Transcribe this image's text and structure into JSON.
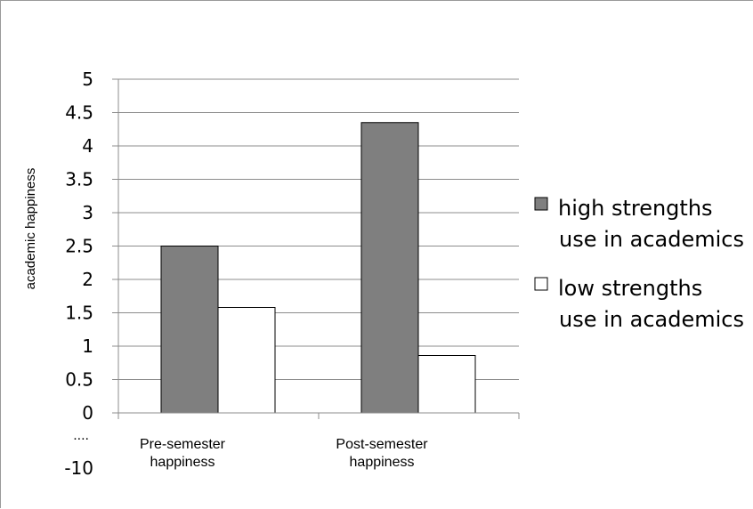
{
  "chart_data": {
    "type": "bar",
    "ylabel": "academic happiness",
    "xlabel": "",
    "ylim": [
      0,
      5
    ],
    "yticks": [
      "0",
      "0.5",
      "1",
      "1.5",
      "2",
      "2.5",
      "3",
      "3.5",
      "4",
      "4.5",
      "5"
    ],
    "ybreak_labels": [
      "....",
      "-10"
    ],
    "categories": [
      [
        "Pre-semester",
        "happiness"
      ],
      [
        "Post-semester",
        "happiness"
      ]
    ],
    "series": [
      {
        "name": [
          "high strengths",
          "use in academics"
        ],
        "color": "#7f7f7f",
        "values": [
          2.5,
          4.35
        ]
      },
      {
        "name": [
          "low strengths",
          "use in academics"
        ],
        "color": "#ffffff",
        "values": [
          1.58,
          0.86
        ]
      }
    ],
    "grid": true,
    "legend_position": "right"
  }
}
